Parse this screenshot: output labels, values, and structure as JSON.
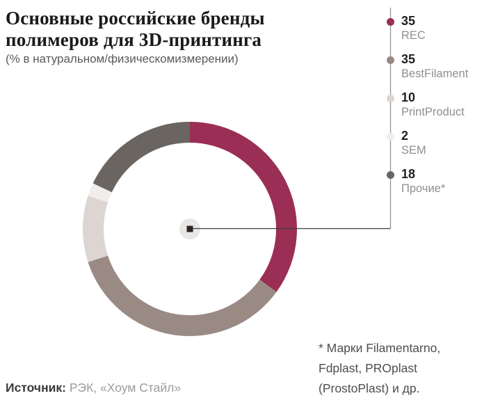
{
  "header": {
    "title_line1": "Основные российские бренды",
    "title_line2": "полимеров для 3D-принтинга",
    "subtitle": "(% в натуральном/физическомизмерении)"
  },
  "chart_data": {
    "type": "pie",
    "variant": "donut",
    "title": "Основные российские бренды полимеров для 3D-принтинга",
    "subtitle": "(% в натуральном/физическомизмерении)",
    "units": "%",
    "start_angle_deg": 0,
    "direction": "clockwise",
    "legend_position": "right",
    "total": 100,
    "series": [
      {
        "name": "REC",
        "value": 35,
        "color": "#9a2e55"
      },
      {
        "name": "BestFilament",
        "value": 35,
        "color": "#998a84"
      },
      {
        "name": "PrintProduct",
        "value": 10,
        "color": "#ddd5d1"
      },
      {
        "name": "SEM",
        "value": 2,
        "color": "#f0edec"
      },
      {
        "name": "Прочие*",
        "value": 18,
        "color": "#6a6561"
      }
    ],
    "hub": {
      "circle_color": "#e9e7e6",
      "square_color": "#2a2423",
      "connector_color": "#3e3e3e",
      "legend_line_color": "#949494"
    }
  },
  "footnote": {
    "line1": "* Марки Filamentarno,",
    "line2": "Fdplast, PROplast",
    "line3": "(ProstoPlast) и др."
  },
  "source": {
    "label": "Источник:",
    "text": "РЭК, «Хоум Стайл»"
  }
}
